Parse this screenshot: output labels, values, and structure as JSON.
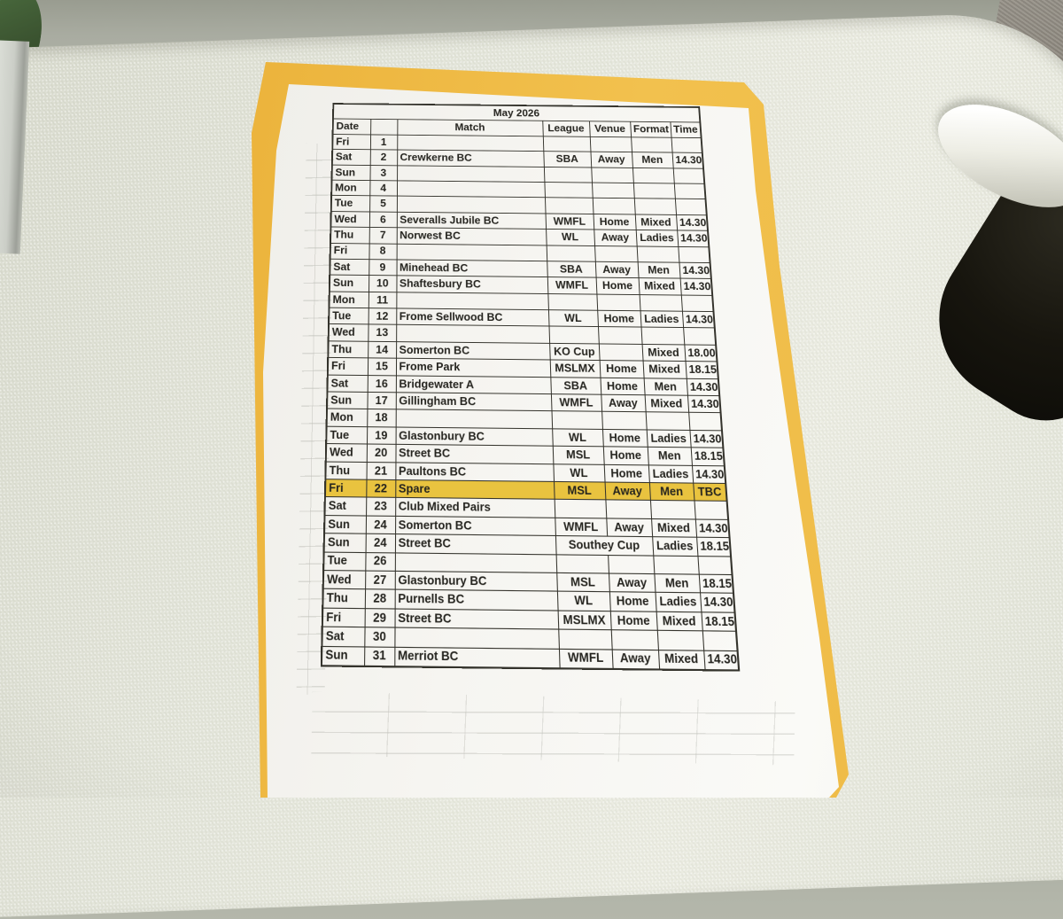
{
  "document": {
    "title": "May 2026",
    "columns": [
      "Date",
      "",
      "Match",
      "League",
      "Venue",
      "Format",
      "Time"
    ],
    "rows": [
      {
        "day": "Fri",
        "date": "1",
        "match": "",
        "league": "",
        "venue": "",
        "format": "",
        "time": ""
      },
      {
        "day": "Sat",
        "date": "2",
        "match": "Crewkerne BC",
        "league": "SBA",
        "venue": "Away",
        "format": "Men",
        "time": "14.30"
      },
      {
        "day": "Sun",
        "date": "3",
        "match": "",
        "league": "",
        "venue": "",
        "format": "",
        "time": ""
      },
      {
        "day": "Mon",
        "date": "4",
        "match": "",
        "league": "",
        "venue": "",
        "format": "",
        "time": ""
      },
      {
        "day": "Tue",
        "date": "5",
        "match": "",
        "league": "",
        "venue": "",
        "format": "",
        "time": ""
      },
      {
        "day": "Wed",
        "date": "6",
        "match": "Severalls Jubile BC",
        "league": "WMFL",
        "venue": "Home",
        "format": "Mixed",
        "time": "14.30"
      },
      {
        "day": "Thu",
        "date": "7",
        "match": "Norwest BC",
        "league": "WL",
        "venue": "Away",
        "format": "Ladies",
        "time": "14.30"
      },
      {
        "day": "Fri",
        "date": "8",
        "match": "",
        "league": "",
        "venue": "",
        "format": "",
        "time": ""
      },
      {
        "day": "Sat",
        "date": "9",
        "match": "Minehead BC",
        "league": "SBA",
        "venue": "Away",
        "format": "Men",
        "time": "14.30"
      },
      {
        "day": "Sun",
        "date": "10",
        "match": "Shaftesbury BC",
        "league": "WMFL",
        "venue": "Home",
        "format": "Mixed",
        "time": "14.30"
      },
      {
        "day": "Mon",
        "date": "11",
        "match": "",
        "league": "",
        "venue": "",
        "format": "",
        "time": ""
      },
      {
        "day": "Tue",
        "date": "12",
        "match": "Frome Sellwood BC",
        "league": "WL",
        "venue": "Home",
        "format": "Ladies",
        "time": "14.30"
      },
      {
        "day": "Wed",
        "date": "13",
        "match": "",
        "league": "",
        "venue": "",
        "format": "",
        "time": ""
      },
      {
        "day": "Thu",
        "date": "14",
        "match": "Somerton BC",
        "league": "KO Cup",
        "venue": "",
        "format": "Mixed",
        "time": "18.00"
      },
      {
        "day": "Fri",
        "date": "15",
        "match": "Frome Park",
        "league": "MSLMX",
        "venue": "Home",
        "format": "Mixed",
        "time": "18.15"
      },
      {
        "day": "Sat",
        "date": "16",
        "match": "Bridgewater A",
        "league": "SBA",
        "venue": "Home",
        "format": "Men",
        "time": "14.30"
      },
      {
        "day": "Sun",
        "date": "17",
        "match": "Gillingham BC",
        "league": "WMFL",
        "venue": "Away",
        "format": "Mixed",
        "time": "14.30"
      },
      {
        "day": "Mon",
        "date": "18",
        "match": "",
        "league": "",
        "venue": "",
        "format": "",
        "time": ""
      },
      {
        "day": "Tue",
        "date": "19",
        "match": "Glastonbury BC",
        "league": "WL",
        "venue": "Home",
        "format": "Ladies",
        "time": "14.30"
      },
      {
        "day": "Wed",
        "date": "20",
        "match": "Street BC",
        "league": "MSL",
        "venue": "Home",
        "format": "Men",
        "time": "18.15"
      },
      {
        "day": "Thu",
        "date": "21",
        "match": "Paultons BC",
        "league": "WL",
        "venue": "Home",
        "format": "Ladies",
        "time": "14.30"
      },
      {
        "day": "Fri",
        "date": "22",
        "match": "Spare",
        "league": "MSL",
        "venue": "Away",
        "format": "Men",
        "time": "TBC",
        "highlight": true
      },
      {
        "day": "Sat",
        "date": "23",
        "match": "Club Mixed Pairs",
        "league": "",
        "venue": "",
        "format": "",
        "time": ""
      },
      {
        "day": "Sun",
        "date": "24",
        "match": "Somerton BC",
        "league": "WMFL",
        "venue": "Away",
        "format": "Mixed",
        "time": "14.30"
      },
      {
        "day": "Sun",
        "date": "24",
        "match": "Street BC",
        "league": "Southey Cup",
        "league_span": 2,
        "format": "Ladies",
        "time": "18.15"
      },
      {
        "day": "Tue",
        "date": "26",
        "match": "",
        "league": "",
        "venue": "",
        "format": "",
        "time": ""
      },
      {
        "day": "Wed",
        "date": "27",
        "match": "Glastonbury BC",
        "league": "MSL",
        "venue": "Away",
        "format": "Men",
        "time": "18.15"
      },
      {
        "day": "Thu",
        "date": "28",
        "match": "Purnells BC",
        "league": "WL",
        "venue": "Home",
        "format": "Ladies",
        "time": "14.30"
      },
      {
        "day": "Fri",
        "date": "29",
        "match": "Street BC",
        "league": "MSLMX",
        "venue": "Home",
        "format": "Mixed",
        "time": "18.15"
      },
      {
        "day": "Sat",
        "date": "30",
        "match": "",
        "league": "",
        "venue": "",
        "format": "",
        "time": ""
      },
      {
        "day": "Sun",
        "date": "31",
        "match": "Merriot BC",
        "league": "WMFL",
        "venue": "Away",
        "format": "Mixed",
        "time": "14.30"
      }
    ]
  },
  "colors": {
    "highlight": "#E9C33F",
    "yellow_sheet": "#EFBC45",
    "paper": "#F6F5F1",
    "tray": "#E4E5DA",
    "table_line": "#34332C",
    "background_top": "#A9ACA1",
    "carpet": "#918C82",
    "plant": "#3F5B34",
    "handle_hole": "#14130D"
  }
}
